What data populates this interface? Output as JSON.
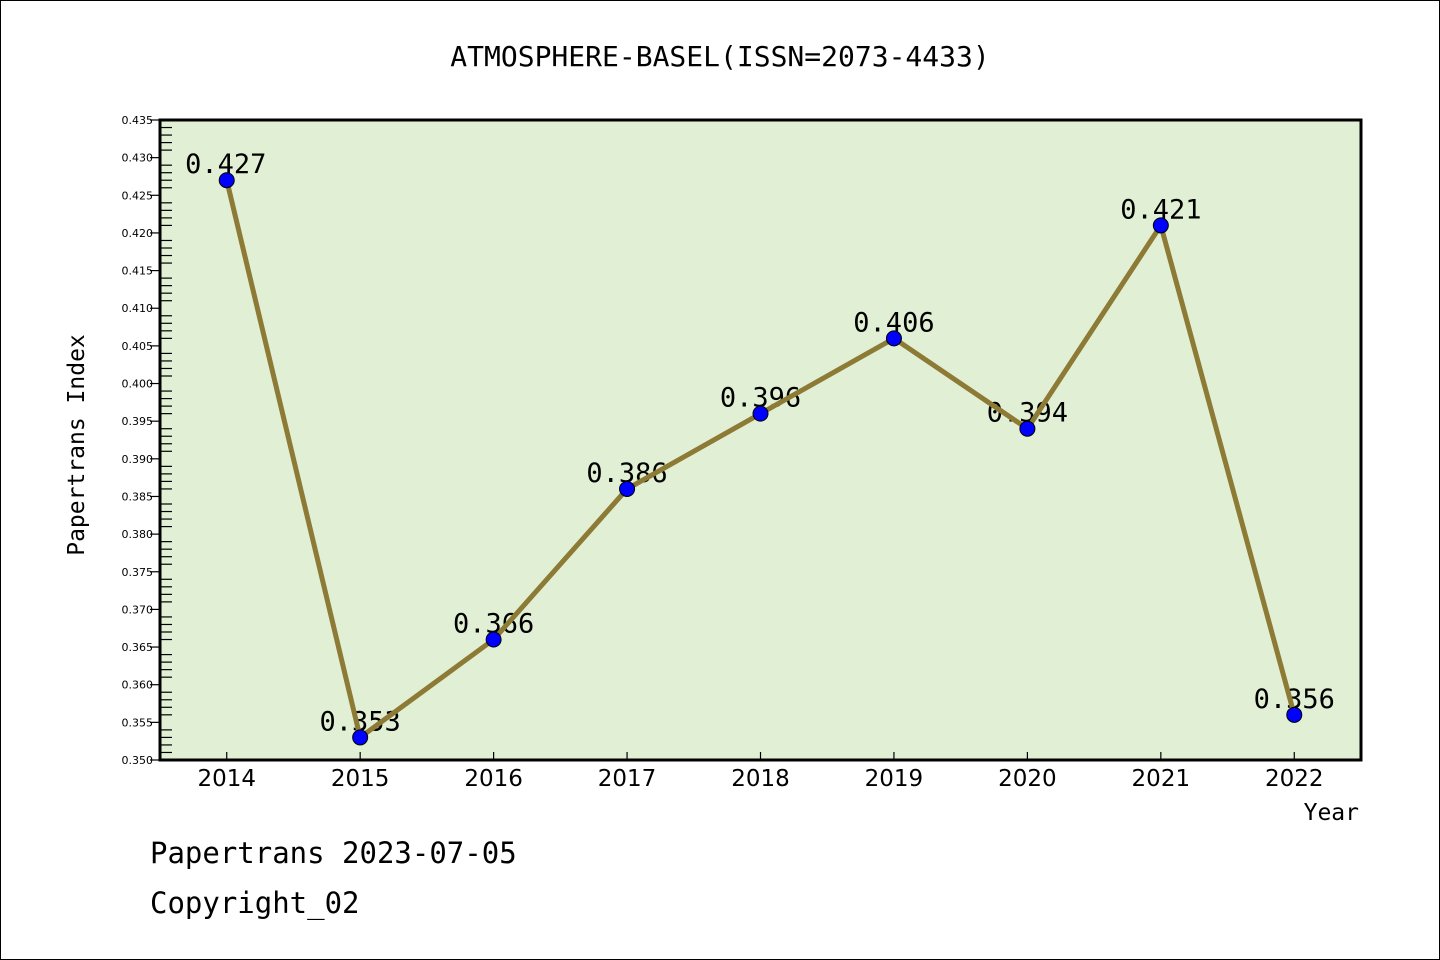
{
  "chart_data": {
    "type": "line",
    "title": "ATMOSPHERE-BASEL(ISSN=2073-4433)",
    "xlabel": "Year",
    "ylabel": "Papertrans Index",
    "categories": [
      "2014",
      "2015",
      "2016",
      "2017",
      "2018",
      "2019",
      "2020",
      "2021",
      "2022"
    ],
    "values": [
      0.427,
      0.353,
      0.366,
      0.386,
      0.396,
      0.406,
      0.394,
      0.421,
      0.356
    ],
    "data_labels": [
      "0.427",
      "0.353",
      "0.366",
      "0.386",
      "0.396",
      "0.406",
      "0.394",
      "0.421",
      "0.356"
    ],
    "ylim": [
      0.35,
      0.435
    ],
    "yticks": [
      "0.350",
      "0.355",
      "0.360",
      "0.365",
      "0.370",
      "0.375",
      "0.380",
      "0.385",
      "0.390",
      "0.395",
      "0.400",
      "0.405",
      "0.410",
      "0.415",
      "0.420",
      "0.425",
      "0.430",
      "0.435"
    ],
    "grid": false,
    "colors": {
      "background": "#e1efd5",
      "line": "#8c7a35",
      "marker": "#0000ff"
    }
  },
  "footer": {
    "line1": "Papertrans 2023-07-05",
    "line2": "Copyright_02"
  }
}
